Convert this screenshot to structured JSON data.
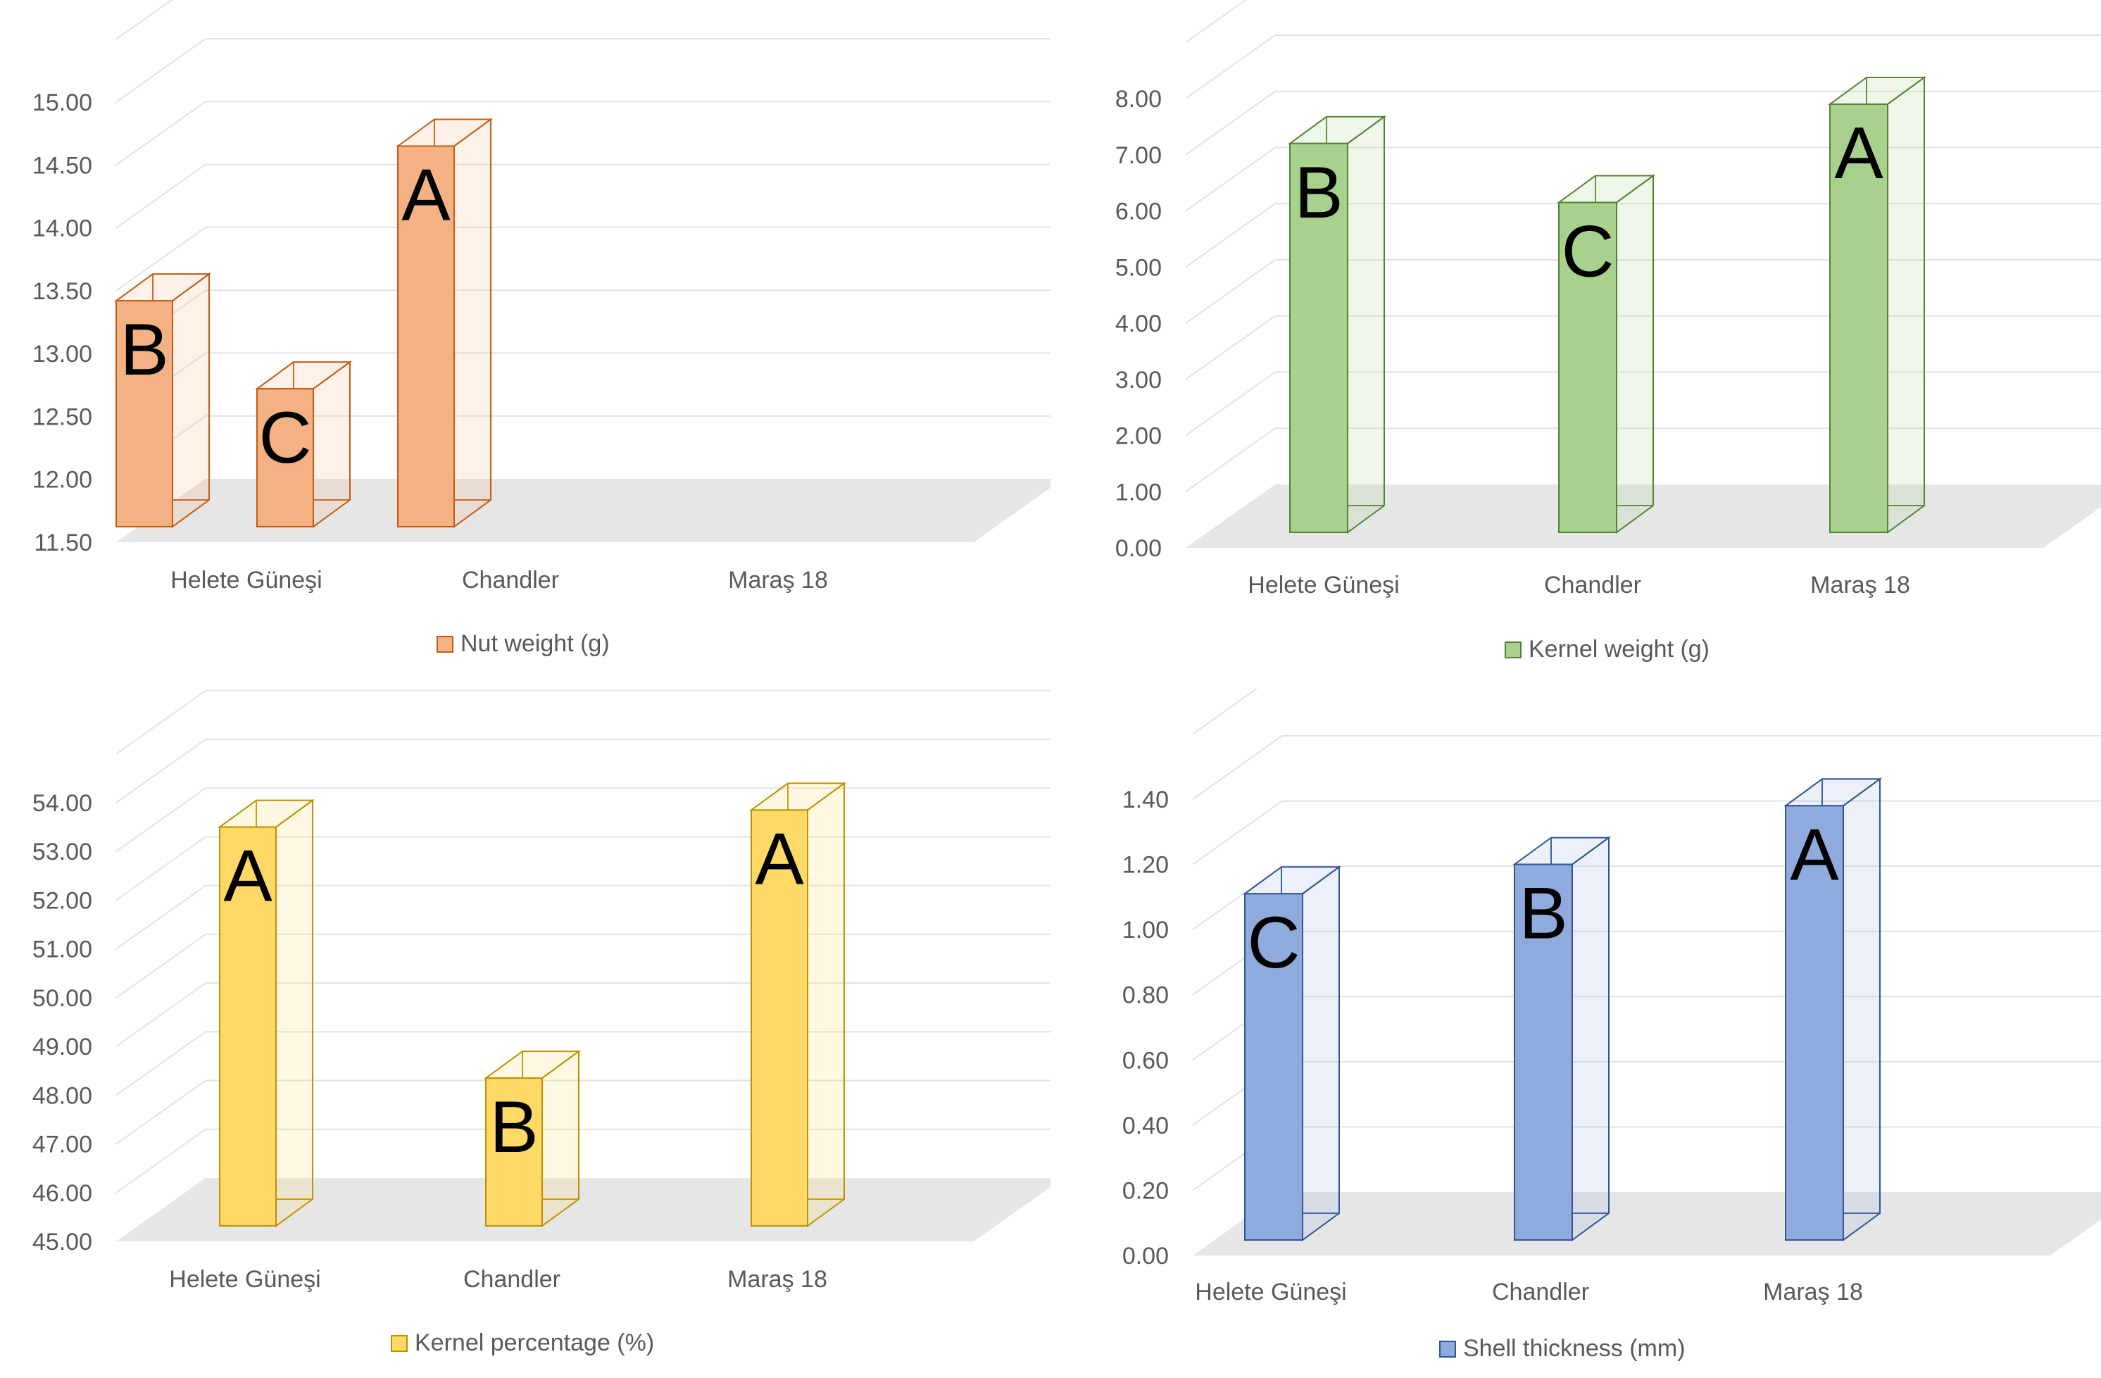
{
  "chart_data": [
    {
      "type": "bar",
      "title": "",
      "categories": [
        "Helete Güneşi",
        "Chandler",
        "Maraş 18"
      ],
      "series": [
        {
          "name": "Nut weight (g)",
          "values": [
            13.42,
            12.72,
            14.65
          ]
        }
      ],
      "letters": [
        "B",
        "C",
        "A"
      ],
      "yticks": [
        "11.50",
        "12.00",
        "12.50",
        "13.00",
        "13.50",
        "14.00",
        "14.50",
        "15.00"
      ],
      "ylim": [
        11.5,
        15.0
      ],
      "legend": "Nut weight (g)",
      "color": "#F4B183",
      "edge": "#C55A11"
    },
    {
      "type": "bar",
      "title": "",
      "categories": [
        "Helete Güneşi",
        "Chandler",
        "Maraş 18"
      ],
      "series": [
        {
          "name": "Kernel weight (g)",
          "values": [
            7.2,
            6.15,
            7.9
          ]
        }
      ],
      "letters": [
        "B",
        "C",
        "A"
      ],
      "yticks": [
        "0.00",
        "1.00",
        "2.00",
        "3.00",
        "4.00",
        "5.00",
        "6.00",
        "7.00",
        "8.00"
      ],
      "ylim": [
        0,
        8.0
      ],
      "legend": "Kernel weight (g)",
      "color": "#A9D18E",
      "edge": "#548235"
    },
    {
      "type": "bar",
      "title": "",
      "categories": [
        "Helete Güneşi",
        "Chandler",
        "Maraş 18"
      ],
      "series": [
        {
          "name": "Kernel percentage (%)",
          "values": [
            53.5,
            48.35,
            53.85
          ]
        }
      ],
      "letters": [
        "A",
        "B",
        "A"
      ],
      "yticks": [
        "45.00",
        "46.00",
        "47.00",
        "48.00",
        "49.00",
        "50.00",
        "51.00",
        "52.00",
        "53.00",
        "54.00"
      ],
      "ylim": [
        45,
        54.0
      ],
      "legend": "Kernel percentage (%)",
      "color": "#FFD966",
      "edge": "#BF9000"
    },
    {
      "type": "bar",
      "title": "",
      "categories": [
        "Helete Güneşi",
        "Chandler",
        "Maraş 18"
      ],
      "series": [
        {
          "name": "Shell thickness (mm)",
          "values": [
            1.11,
            1.2,
            1.38
          ]
        }
      ],
      "letters": [
        "C",
        "B",
        "A"
      ],
      "yticks": [
        "0.00",
        "0.20",
        "0.40",
        "0.60",
        "0.80",
        "1.00",
        "1.20",
        "1.40"
      ],
      "ylim": [
        0,
        1.4
      ],
      "legend": "Shell thickness (mm)",
      "color": "#8FAADC",
      "edge": "#2F5597"
    }
  ]
}
